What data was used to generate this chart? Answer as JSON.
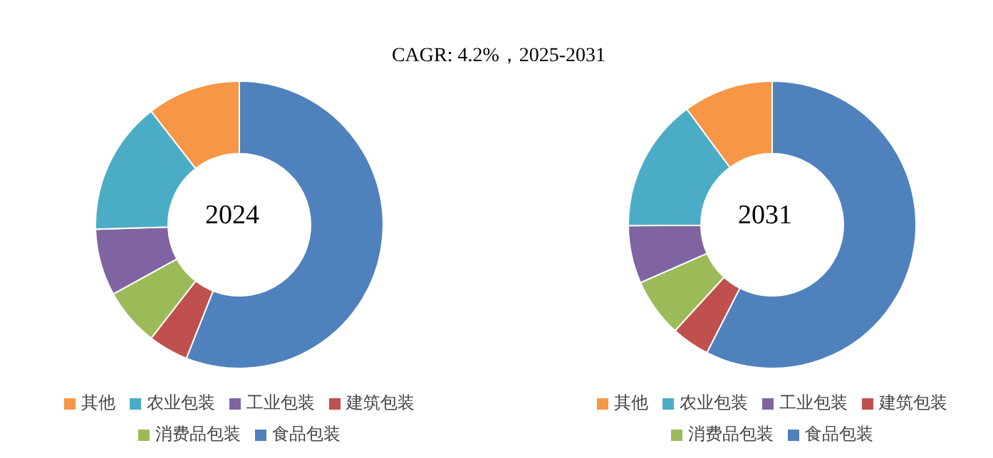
{
  "chart_data": [
    {
      "type": "donut",
      "title": "CAGR:  4.2%，2025-2031",
      "categories": [
        "食品包装",
        "建筑包装",
        "消费品包装",
        "工业包装",
        "农业包装",
        "其他"
      ],
      "values": [
        56,
        4.5,
        6.5,
        7.5,
        15,
        10.5
      ],
      "colors": [
        "#4f81bd",
        "#c0504d",
        "#9bbb59",
        "#8064a2",
        "#4bacc6",
        "#f79646"
      ],
      "annotations": [
        "2024"
      ],
      "legend": "bottom"
    },
    {
      "type": "donut",
      "categories": [
        "食品包装",
        "建筑包装",
        "消费品包装",
        "工业包装",
        "农业包装",
        "其他"
      ],
      "values": [
        57.5,
        4.3,
        6.6,
        6.5,
        15,
        10.1
      ],
      "colors": [
        "#4f81bd",
        "#c0504d",
        "#9bbb59",
        "#8064a2",
        "#4bacc6",
        "#f79646"
      ],
      "annotations": [
        "2031"
      ],
      "legend": "bottom"
    }
  ]
}
